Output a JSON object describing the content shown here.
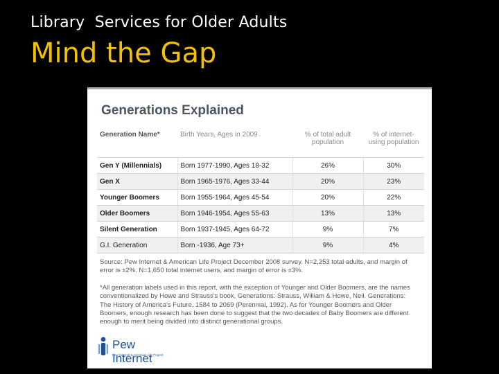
{
  "header": {
    "subtitle": "Library  Services for Older Adults",
    "title": "Mind the Gap"
  },
  "slide": {
    "title": "Generations Explained",
    "columns": [
      "Generation Name*",
      "Birth Years, Ages in 2009",
      "% of total adult population",
      "% of internet-using population"
    ],
    "rows": [
      {
        "name": "Gen Y (Millennials)",
        "birth": "Born 1977-1990, Ages 18-32",
        "adult": "26%",
        "internet": "30%"
      },
      {
        "name": "Gen X",
        "birth": "Born 1965-1976, Ages 33-44",
        "adult": "20%",
        "internet": "23%"
      },
      {
        "name": "Younger Boomers",
        "birth": "Born 1955-1964, Ages 45-54",
        "adult": "20%",
        "internet": "22%"
      },
      {
        "name": "Older Boomers",
        "birth": "Born 1946-1954, Ages 55-63",
        "adult": "13%",
        "internet": "13%"
      },
      {
        "name": "Silent Generation",
        "birth": "Born 1937-1945, Ages 64-72",
        "adult": "9%",
        "internet": "7%"
      },
      {
        "name": "G.I. Generation",
        "birth": "Born -1936, Age 73+",
        "adult": "9%",
        "internet": "4%"
      }
    ],
    "source": "Source: Pew Internet & American Life Project December 2008 survey. N=2,253 total adults, and margin of error is ±2%. N=1,650 total internet users, and margin of error is ±3%.",
    "note": "*All generation labels used in this report, with the exception of Younger and Older Boomers, are the names conventionalized by Howe and Strauss's book, Generations: Strauss, William & Howe, Neil. Generations: The History of America's Future, 1584 to 2069 (Perennial, 1992). As for Younger Boomers and Older Boomers, enough research has been done to suggest that the two decades of Baby Boomers are different enough to merit being divided into distinct generational groups.",
    "logo": {
      "name": "Pew Internet",
      "tagline": "Pew Internet & American Life Project",
      "icon": "pew-logo-icon"
    }
  }
}
